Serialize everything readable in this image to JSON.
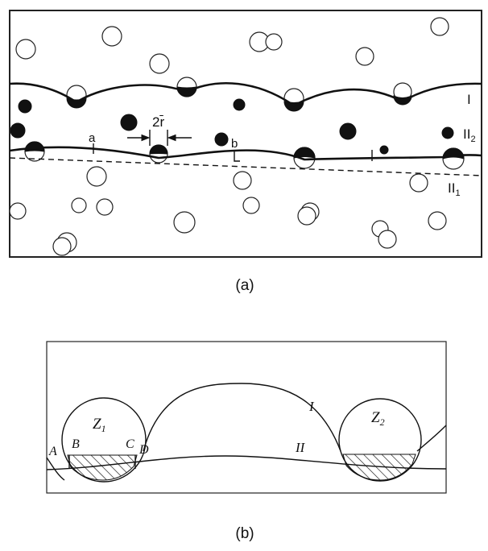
{
  "panel_a": {
    "caption": "(a)",
    "label_I": "I",
    "label_II2": "II",
    "label_II2_sub": "2",
    "label_II1": "II",
    "label_II1_sub": "1",
    "label_a": "a",
    "label_b": "b",
    "label_2r": "2r̄"
  },
  "panel_b": {
    "caption": "(b)",
    "label_Z1": "Z",
    "label_Z1_sub": "1",
    "label_Z2": "Z",
    "label_Z2_sub": "2",
    "label_A": "A",
    "label_B": "B",
    "label_C": "C",
    "label_D": "D",
    "label_I": "I",
    "label_II": "II"
  }
}
